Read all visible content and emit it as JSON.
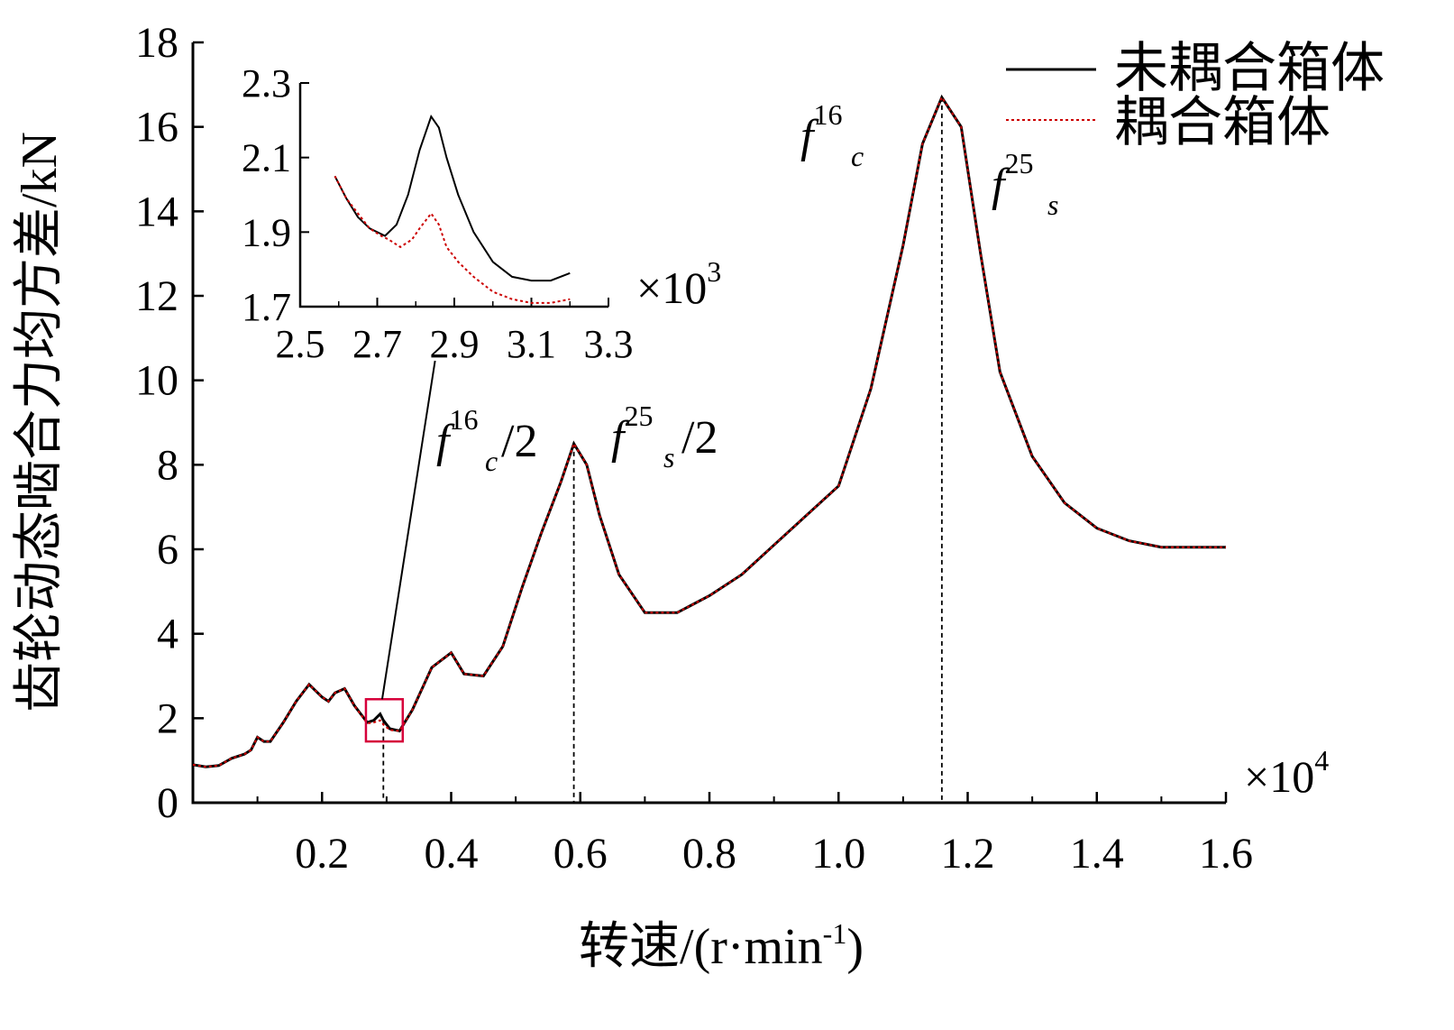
{
  "chart_data": [
    {
      "type": "line",
      "ylabel": "齿轮动态啮合力均方差/kN",
      "xlabel": "转速/(r·min",
      "xlabel_sup": "-1",
      "xlabel_close": ")",
      "x_multiplier": "×10",
      "x_multiplier_exp": "4",
      "xlim": [
        0,
        1.6
      ],
      "ylim": [
        0,
        18
      ],
      "x_ticks": [
        "0.2",
        "0.4",
        "0.6",
        "0.8",
        "1.0",
        "1.2",
        "1.4",
        "1.6"
      ],
      "y_ticks": [
        "0",
        "2",
        "4",
        "6",
        "8",
        "10",
        "12",
        "14",
        "16",
        "18"
      ],
      "legend": {
        "placement": "top-right",
        "entries": [
          "未耦合箱体",
          "耦合箱体"
        ]
      },
      "colors": {
        "uncoupled": "#000000",
        "coupled": "#cc0000",
        "box": "#d6003a"
      },
      "series": [
        {
          "name": "未耦合箱体",
          "style": "solid",
          "x": [
            0.0,
            0.02,
            0.04,
            0.06,
            0.08,
            0.09,
            0.1,
            0.11,
            0.12,
            0.14,
            0.16,
            0.18,
            0.2,
            0.21,
            0.22,
            0.235,
            0.25,
            0.27,
            0.28,
            0.29,
            0.295,
            0.305,
            0.32,
            0.34,
            0.37,
            0.4,
            0.42,
            0.45,
            0.48,
            0.51,
            0.54,
            0.57,
            0.59,
            0.61,
            0.63,
            0.66,
            0.7,
            0.75,
            0.8,
            0.85,
            0.9,
            1.0,
            1.05,
            1.1,
            1.13,
            1.16,
            1.19,
            1.22,
            1.25,
            1.3,
            1.35,
            1.4,
            1.45,
            1.5,
            1.52,
            1.6
          ],
          "y": [
            0.9,
            0.85,
            0.88,
            1.05,
            1.15,
            1.25,
            1.55,
            1.45,
            1.45,
            1.9,
            2.4,
            2.8,
            2.5,
            2.4,
            2.6,
            2.7,
            2.3,
            1.9,
            1.95,
            2.1,
            1.95,
            1.75,
            1.7,
            2.2,
            3.2,
            3.55,
            3.05,
            3.0,
            3.7,
            5.1,
            6.4,
            7.6,
            8.5,
            8.0,
            6.8,
            5.4,
            4.5,
            4.5,
            4.9,
            5.4,
            6.1,
            7.5,
            9.8,
            13.2,
            15.6,
            16.7,
            16.0,
            13.0,
            10.2,
            8.2,
            7.1,
            6.5,
            6.2,
            6.05,
            6.05,
            6.05
          ]
        },
        {
          "name": "耦合箱体",
          "style": "dotted",
          "x": [
            0.0,
            0.02,
            0.04,
            0.06,
            0.08,
            0.09,
            0.1,
            0.11,
            0.12,
            0.14,
            0.16,
            0.18,
            0.2,
            0.21,
            0.22,
            0.235,
            0.25,
            0.27,
            0.28,
            0.29,
            0.295,
            0.305,
            0.32,
            0.34,
            0.37,
            0.4,
            0.42,
            0.45,
            0.48,
            0.51,
            0.54,
            0.57,
            0.59,
            0.61,
            0.63,
            0.66,
            0.7,
            0.75,
            0.8,
            0.85,
            0.9,
            1.0,
            1.05,
            1.1,
            1.13,
            1.16,
            1.19,
            1.22,
            1.25,
            1.3,
            1.35,
            1.4,
            1.45,
            1.5,
            1.52,
            1.6
          ],
          "y": [
            0.9,
            0.85,
            0.88,
            1.05,
            1.15,
            1.25,
            1.55,
            1.45,
            1.45,
            1.9,
            2.4,
            2.8,
            2.5,
            2.4,
            2.6,
            2.7,
            2.3,
            1.88,
            1.9,
            1.95,
            1.85,
            1.72,
            1.7,
            2.2,
            3.2,
            3.55,
            3.05,
            3.0,
            3.7,
            5.1,
            6.4,
            7.6,
            8.5,
            8.0,
            6.8,
            5.4,
            4.5,
            4.5,
            4.9,
            5.4,
            6.1,
            7.5,
            9.8,
            13.2,
            15.6,
            16.7,
            16.0,
            13.0,
            10.2,
            8.2,
            7.1,
            6.5,
            6.2,
            6.05,
            6.05,
            6.05
          ]
        }
      ],
      "vlines": [
        0.295,
        0.59,
        1.16
      ],
      "zoom_box": {
        "x": [
          0.268,
          0.325
        ],
        "y": [
          1.45,
          2.45
        ]
      },
      "annotations": [
        {
          "base": "f",
          "sup": "16",
          "sub": "c",
          "suffix": ""
        },
        {
          "base": "f",
          "sup": "25",
          "sub": "s",
          "suffix": ""
        },
        {
          "base": "f",
          "sup": "16",
          "sub": "c",
          "suffix": "/2"
        },
        {
          "base": "f",
          "sup": "25",
          "sub": "s",
          "suffix": "/2"
        }
      ]
    },
    {
      "type": "line",
      "role": "inset",
      "x_multiplier": "×10",
      "x_multiplier_exp": "3",
      "xlim": [
        2.5,
        3.3
      ],
      "ylim": [
        1.7,
        2.3
      ],
      "x_ticks": [
        "2.5",
        "2.7",
        "2.9",
        "3.1",
        "3.3"
      ],
      "y_ticks": [
        "1.7",
        "1.9",
        "2.1",
        "2.3"
      ],
      "series": [
        {
          "name": "未耦合箱体",
          "style": "solid",
          "x": [
            2.59,
            2.62,
            2.65,
            2.68,
            2.72,
            2.75,
            2.78,
            2.81,
            2.84,
            2.86,
            2.88,
            2.91,
            2.95,
            3.0,
            3.05,
            3.1,
            3.15,
            3.2
          ],
          "y": [
            2.05,
            1.99,
            1.94,
            1.91,
            1.89,
            1.92,
            2.0,
            2.12,
            2.21,
            2.18,
            2.1,
            2.0,
            1.9,
            1.82,
            1.78,
            1.77,
            1.77,
            1.79
          ]
        },
        {
          "name": "耦合箱体",
          "style": "dotted",
          "x": [
            2.59,
            2.62,
            2.65,
            2.68,
            2.71,
            2.73,
            2.76,
            2.79,
            2.81,
            2.84,
            2.86,
            2.88,
            2.91,
            2.95,
            3.0,
            3.05,
            3.1,
            3.15,
            3.2
          ],
          "y": [
            2.05,
            1.99,
            1.95,
            1.91,
            1.89,
            1.88,
            1.86,
            1.88,
            1.91,
            1.95,
            1.92,
            1.86,
            1.82,
            1.78,
            1.74,
            1.72,
            1.71,
            1.71,
            1.72
          ]
        }
      ]
    }
  ]
}
